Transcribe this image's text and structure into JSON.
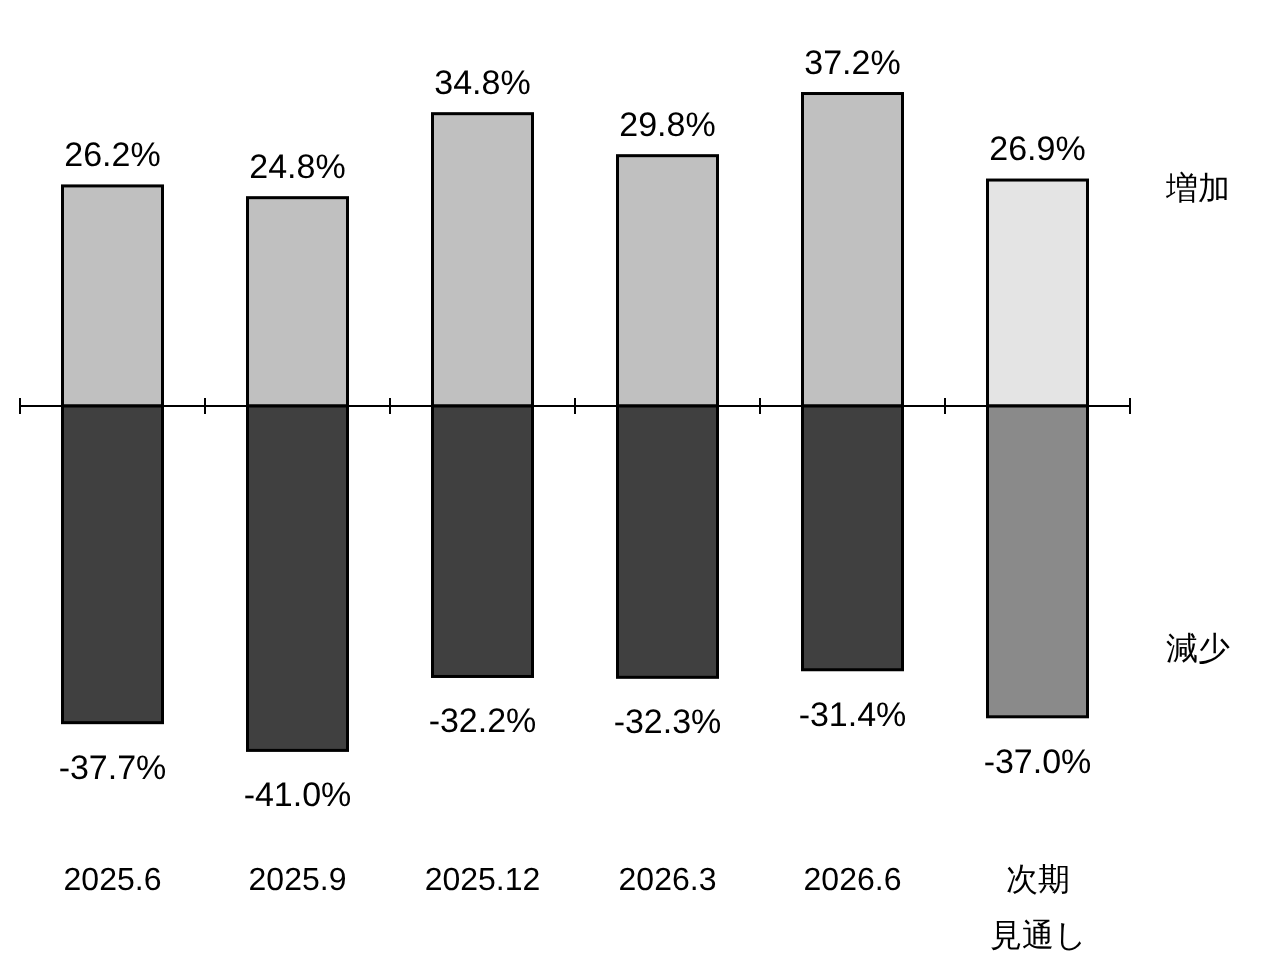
{
  "chart_data": {
    "type": "bar",
    "stacked": true,
    "categories": [
      "2025.6",
      "2025.9",
      "2025.12",
      "2026.3",
      "2026.6",
      "次期見通し"
    ],
    "series": [
      {
        "name": "増加",
        "colors": [
          "#c0c0c0",
          "#c0c0c0",
          "#c0c0c0",
          "#c0c0c0",
          "#c0c0c0",
          "#e4e4e4"
        ],
        "values": [
          26.2,
          24.8,
          34.8,
          29.8,
          37.2,
          26.9
        ],
        "value_labels": [
          "26.2%",
          "24.8%",
          "34.8%",
          "29.8%",
          "37.2%",
          "26.9%"
        ]
      },
      {
        "name": "減少",
        "colors": [
          "#404040",
          "#404040",
          "#404040",
          "#404040",
          "#404040",
          "#8a8a8a"
        ],
        "values": [
          -37.7,
          -41.0,
          -32.2,
          -32.3,
          -31.4,
          -37.0
        ],
        "value_labels": [
          "-37.7%",
          "-41.0%",
          "-32.2%",
          "-32.3%",
          "-31.4%",
          "-37.0%"
        ]
      }
    ]
  }
}
